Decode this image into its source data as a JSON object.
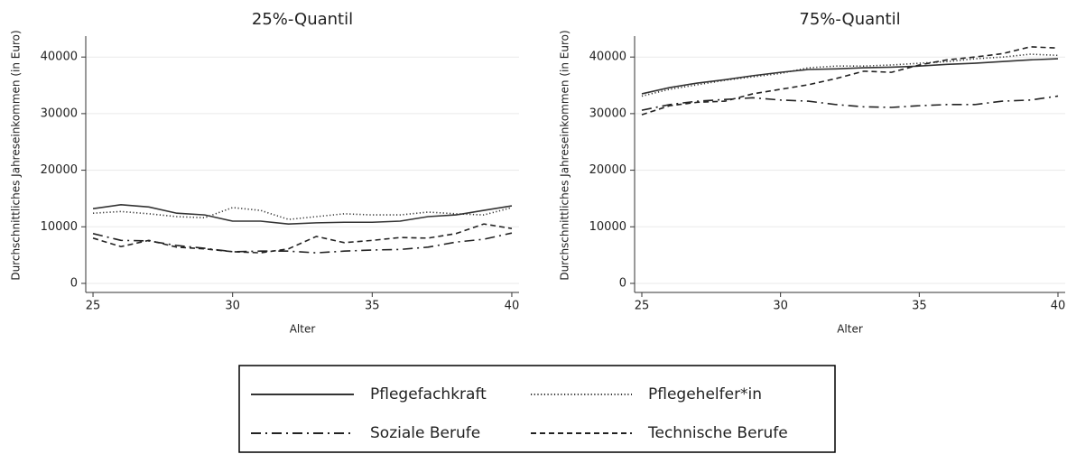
{
  "chart_data": [
    {
      "type": "line",
      "title": "25%-Quantil",
      "x_label": "Alter",
      "y_label": "Durchschnittliches Jahreseinkommen (in Euro)",
      "x": [
        25,
        26,
        27,
        28,
        29,
        30,
        31,
        32,
        33,
        34,
        35,
        36,
        37,
        38,
        39,
        40
      ],
      "series": [
        {
          "values": [
            13200,
            13900,
            13500,
            12400,
            12100,
            11000,
            11000,
            10500,
            10700,
            10800,
            10800,
            11000,
            11800,
            12100,
            12900,
            13700
          ]
        },
        {
          "values": [
            12400,
            12700,
            12300,
            11800,
            11600,
            13400,
            12900,
            11300,
            11800,
            12300,
            12100,
            12100,
            12600,
            12300,
            12100,
            13400
          ]
        },
        {
          "values": [
            8800,
            7600,
            7500,
            6700,
            6200,
            5600,
            5700,
            5700,
            5400,
            5700,
            5900,
            6000,
            6400,
            7300,
            7800,
            8900
          ]
        },
        {
          "values": [
            8000,
            6500,
            7600,
            6400,
            6100,
            5600,
            5400,
            6100,
            8300,
            7200,
            7600,
            8100,
            8000,
            8800,
            10500,
            9700
          ]
        }
      ],
      "xlim": [
        24.74,
        40.26
      ],
      "xticks": [
        25,
        30,
        35,
        40
      ],
      "ylim": [
        -1600,
        43700
      ],
      "yticks": [
        0,
        10000,
        20000,
        30000,
        40000
      ],
      "grid": true
    },
    {
      "type": "line",
      "title": "75%-Quantil",
      "x_label": "Alter",
      "y_label": "Durchschnittliches Jahreseinkommen (in Euro)",
      "x": [
        25,
        26,
        27,
        28,
        29,
        30,
        31,
        32,
        33,
        34,
        35,
        36,
        37,
        38,
        39,
        40
      ],
      "series": [
        {
          "values": [
            33500,
            34600,
            35400,
            36000,
            36700,
            37300,
            37800,
            37900,
            38100,
            38200,
            38400,
            38700,
            38900,
            39200,
            39500,
            39700
          ]
        },
        {
          "values": [
            33100,
            34300,
            35100,
            35900,
            36500,
            37100,
            38100,
            38400,
            38400,
            38600,
            38900,
            39200,
            39700,
            40000,
            40500,
            40300
          ]
        },
        {
          "values": [
            30600,
            31600,
            32200,
            32500,
            32800,
            32400,
            32200,
            31600,
            31200,
            31100,
            31400,
            31600,
            31600,
            32200,
            32400,
            33100
          ]
        },
        {
          "values": [
            29800,
            31400,
            32000,
            32200,
            33500,
            34300,
            35100,
            36200,
            37500,
            37300,
            38600,
            39500,
            40000,
            40600,
            41800,
            41600
          ]
        }
      ],
      "xlim": [
        24.74,
        40.26
      ],
      "xticks": [
        25,
        30,
        35,
        40
      ],
      "ylim": [
        -1600,
        43700
      ],
      "yticks": [
        0,
        10000,
        20000,
        30000,
        40000
      ],
      "grid": true
    }
  ],
  "legend": [
    {
      "name": "Pflegefachkraft",
      "color": "#333333",
      "dash": "solid"
    },
    {
      "name": "Pflegehelfer*in",
      "color": "#333333",
      "dash": "dotted"
    },
    {
      "name": "Soziale Berufe",
      "color": "#222222",
      "dash": "dashdot"
    },
    {
      "name": "Technische Berufe",
      "color": "#222222",
      "dash": "dashed"
    }
  ]
}
